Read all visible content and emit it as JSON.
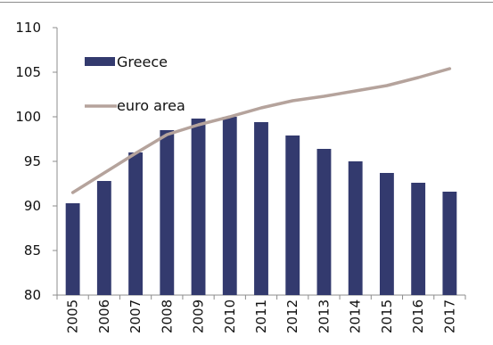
{
  "chart_data": {
    "type": "bar",
    "categories": [
      "2005",
      "2006",
      "2007",
      "2008",
      "2009",
      "2010",
      "2011",
      "2012",
      "2013",
      "2014",
      "2015",
      "2016",
      "2017"
    ],
    "series": [
      {
        "name": "Greece",
        "kind": "bar",
        "color": "#333a6e",
        "values": [
          90.3,
          92.8,
          96.0,
          98.5,
          99.8,
          100.0,
          99.4,
          97.9,
          96.4,
          95.0,
          93.7,
          92.6,
          91.6
        ]
      },
      {
        "name": "euro area",
        "kind": "line",
        "color": "#b5a39c",
        "values": [
          91.5,
          93.7,
          95.9,
          98.0,
          99.1,
          100.0,
          101.0,
          101.8,
          102.3,
          102.9,
          103.5,
          104.4,
          105.4
        ]
      }
    ],
    "ylim": [
      80,
      110
    ],
    "yticks": [
      "80",
      "85",
      "90",
      "95",
      "100",
      "105",
      "110"
    ],
    "title": "",
    "xlabel": "",
    "ylabel": "",
    "legend": {
      "placement": "top-left"
    }
  }
}
